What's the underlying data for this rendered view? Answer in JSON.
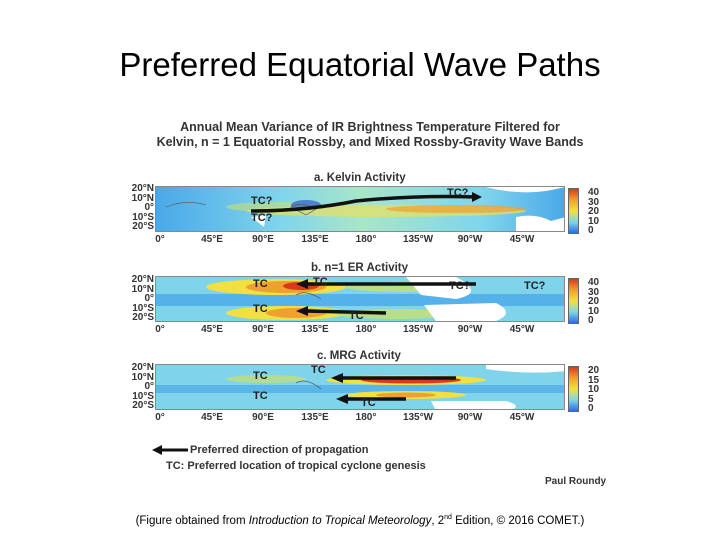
{
  "slide": {
    "title": "Preferred Equatorial Wave Paths"
  },
  "figure": {
    "title_line1": "Annual Mean Variance of IR Brightness Temperature Filtered for",
    "title_line2": "Kelvin, n = 1 Equatorial Rossby, and Mixed Rossby-Gravity Wave Bands",
    "lat_labels": [
      "20°N",
      "10°N",
      "0°",
      "10°S",
      "20°S"
    ],
    "lon_labels": [
      "0°",
      "45°E",
      "90°E",
      "135°E",
      "180°",
      "135°W",
      "90°W",
      "45°W"
    ],
    "panels": [
      {
        "title": "a. Kelvin Activity",
        "colorbar": [
          "40",
          "30",
          "20",
          "10",
          "0"
        ],
        "tc_labels": [
          "TC?",
          "TC?",
          "TC?"
        ]
      },
      {
        "title": "b. n=1 ER Activity",
        "colorbar": [
          "40",
          "30",
          "20",
          "10",
          "0"
        ],
        "tc_labels": [
          "TC",
          "TC",
          "TC",
          "TC",
          "TC?",
          "TC?"
        ]
      },
      {
        "title": "c. MRG Activity",
        "colorbar": [
          "20",
          "15",
          "10",
          "5",
          "0"
        ],
        "tc_labels": [
          "TC",
          "TC",
          "TC",
          "TC"
        ]
      }
    ],
    "legend": {
      "arrow_text": "Preferred direction of propagation",
      "tc_text": "TC: Preferred location of tropical cyclone genesis"
    },
    "credit": "Paul Roundy"
  },
  "caption": {
    "prefix": "(Figure obtained from ",
    "book": "Introduction to Tropical Meteorology",
    "edition_num": ", 2",
    "edition_sup": "nd",
    "suffix": " Edition, © 2016 COMET.)"
  },
  "colors": {
    "ocean_low": "#2a6fe0",
    "mid": "#7fd4ec",
    "high": "#f0e040",
    "peak": "#d83a1c",
    "land": "#ffffff"
  }
}
